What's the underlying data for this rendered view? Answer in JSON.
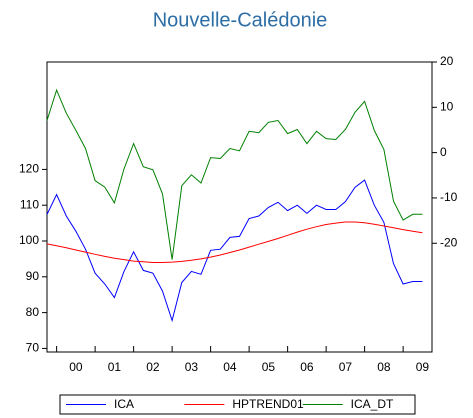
{
  "chart_data": {
    "type": "line",
    "title": "Nouvelle-Calédonie",
    "x": [
      1999.75,
      2000,
      2000.25,
      2000.5,
      2000.75,
      2001,
      2001.25,
      2001.5,
      2001.75,
      2002,
      2002.25,
      2002.5,
      2002.75,
      2003,
      2003.25,
      2003.5,
      2003.75,
      2004,
      2004.25,
      2004.5,
      2004.75,
      2005,
      2005.25,
      2005.5,
      2005.75,
      2006,
      2006.25,
      2006.5,
      2006.75,
      2007,
      2007.25,
      2007.5,
      2007.75,
      2008,
      2008.25,
      2008.5,
      2008.75,
      2009,
      2009.25,
      2009.5
    ],
    "xlim": [
      1999.75,
      2009.75
    ],
    "xticks": [
      {
        "value": 2000.5,
        "label": "00"
      },
      {
        "value": 2001.5,
        "label": "01"
      },
      {
        "value": 2002.5,
        "label": "02"
      },
      {
        "value": 2003.5,
        "label": "03"
      },
      {
        "value": 2004.5,
        "label": "04"
      },
      {
        "value": 2005.5,
        "label": "05"
      },
      {
        "value": 2006.5,
        "label": "06"
      },
      {
        "value": 2007.5,
        "label": "07"
      },
      {
        "value": 2008.5,
        "label": "08"
      },
      {
        "value": 2009.5,
        "label": "09"
      }
    ],
    "ylim": [
      69,
      150
    ],
    "yticks": [
      70,
      80,
      90,
      100,
      110,
      120
    ],
    "y2lim": [
      -44,
      20
    ],
    "y2ticks": [
      -20,
      -10,
      0,
      10,
      20
    ],
    "legend": "bottom",
    "series": [
      {
        "name": "ICA",
        "color": "#0000ff",
        "values": [
          107.4,
          113,
          107,
          102.7,
          97.7,
          91,
          88,
          84.2,
          91.5,
          97,
          91.8,
          91,
          86,
          77.8,
          88.4,
          91.5,
          90.7,
          97.4,
          97.7,
          101,
          101.3,
          106.3,
          107,
          109.4,
          110.8,
          108.5,
          110,
          107.7,
          110,
          108.8,
          108.8,
          111,
          115,
          117,
          110,
          105.2,
          93.7,
          88,
          88.7,
          88.7
        ]
      },
      {
        "name": "HPTREND01",
        "color": "#ff0000",
        "values": [
          99.2,
          98.7,
          98.1,
          97.5,
          96.9,
          96.3,
          95.7,
          95.2,
          94.8,
          94.4,
          94.2,
          94,
          94,
          94.1,
          94.3,
          94.6,
          95,
          95.5,
          96.1,
          96.8,
          97.5,
          98.3,
          99.1,
          99.9,
          100.7,
          101.6,
          102.5,
          103.3,
          104,
          104.6,
          105,
          105.3,
          105.3,
          105.1,
          104.7,
          104.2,
          103.7,
          103.2,
          102.7,
          102.3
        ]
      },
      {
        "name": "ICA_DT",
        "color": "#008000",
        "axis": "y2",
        "values": [
          7.1,
          13.8,
          8.7,
          4.9,
          0.9,
          -6.2,
          -7.6,
          -11.1,
          -3.6,
          2,
          -3.1,
          -3.8,
          -9.1,
          -23.6,
          -7.3,
          -4.9,
          -6.7,
          -1.1,
          -1.3,
          0.9,
          0.4,
          4.7,
          4.4,
          6.7,
          7.1,
          4.2,
          5.1,
          2,
          4.7,
          3.1,
          2.9,
          5.1,
          8.9,
          11.3,
          4.9,
          0.7,
          -10.7,
          -14.9,
          -13.6,
          -13.6
        ]
      }
    ]
  }
}
